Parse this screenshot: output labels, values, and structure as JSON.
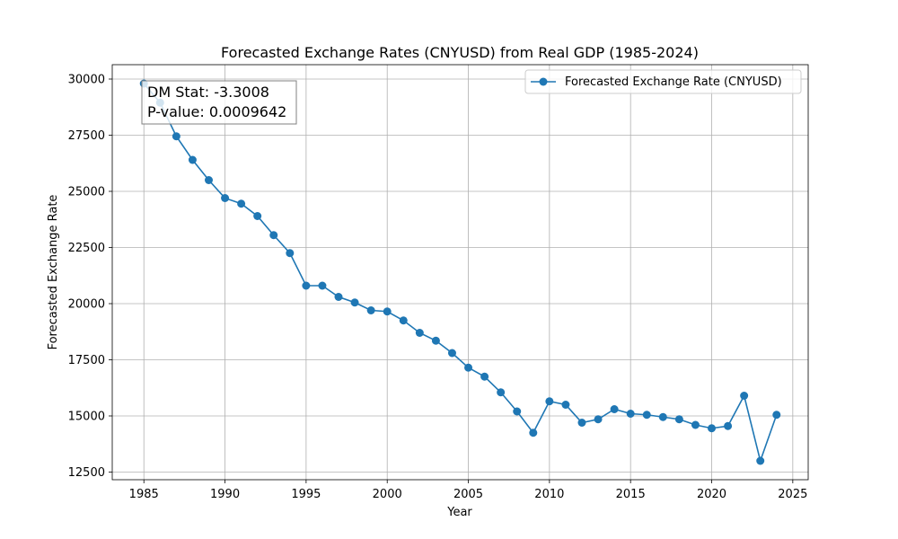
{
  "chart_data": {
    "type": "line",
    "title": "Forecasted Exchange Rates (CNYUSD) from Real GDP (1985-2024)",
    "xlabel": "Year",
    "ylabel": "Forecasted Exchange Rate",
    "xlim": [
      1983.05,
      2025.95
    ],
    "ylim": [
      12160,
      30640
    ],
    "x_ticks": [
      1985,
      1990,
      1995,
      2000,
      2005,
      2010,
      2015,
      2020,
      2025
    ],
    "y_ticks": [
      12500,
      15000,
      17500,
      20000,
      22500,
      25000,
      27500,
      30000
    ],
    "grid": true,
    "legend_position": "top-right",
    "color": "#1f77b4",
    "marker": "circle",
    "series": [
      {
        "name": "Forecasted Exchange Rate (CNYUSD)",
        "x": [
          1985,
          1986,
          1987,
          1988,
          1989,
          1990,
          1991,
          1992,
          1993,
          1994,
          1995,
          1996,
          1997,
          1998,
          1999,
          2000,
          2001,
          2002,
          2003,
          2004,
          2005,
          2006,
          2007,
          2008,
          2009,
          2010,
          2011,
          2012,
          2013,
          2014,
          2015,
          2016,
          2017,
          2018,
          2019,
          2020,
          2021,
          2022,
          2023,
          2024
        ],
        "values": [
          29800,
          28950,
          27450,
          26400,
          25500,
          24700,
          24450,
          23900,
          23050,
          22250,
          20800,
          20800,
          20300,
          20050,
          19700,
          19650,
          19250,
          18700,
          18350,
          17800,
          17150,
          16750,
          16050,
          15200,
          14250,
          15650,
          15500,
          14700,
          14850,
          15300,
          15100,
          15050,
          14950,
          14850,
          14600,
          14450,
          14550,
          15900,
          13000,
          15050
        ]
      }
    ],
    "annotation": {
      "dm_stat": "DM Stat: -3.3008",
      "p_value": "P-value: 0.0009642"
    }
  }
}
